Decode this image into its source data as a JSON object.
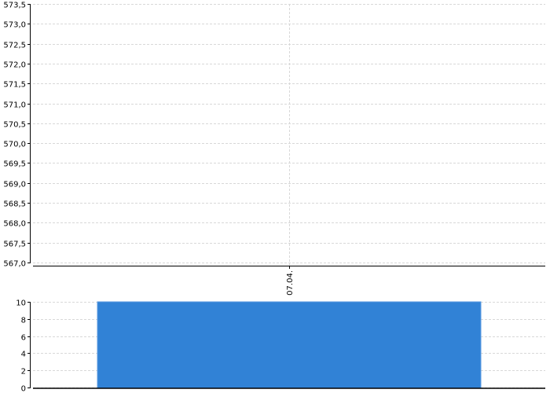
{
  "chart_data": [
    {
      "type": "line",
      "x_tick_labels": [
        "07.04."
      ],
      "y_tick_labels": [
        "567,0",
        "567,5",
        "568,0",
        "568,5",
        "569,0",
        "569,5",
        "570,0",
        "570,5",
        "571,0",
        "571,5",
        "572,0",
        "572,5",
        "573,0",
        "573,5"
      ],
      "ylim": [
        567.0,
        573.5
      ],
      "series": [],
      "grid": true
    },
    {
      "type": "bar",
      "categories": [
        "07.04."
      ],
      "values": [
        10
      ],
      "y_tick_labels": [
        "0",
        "2",
        "4",
        "6",
        "8",
        "10"
      ],
      "ylim": [
        0,
        10
      ],
      "grid": true,
      "bar_color": "#3182d6"
    }
  ]
}
